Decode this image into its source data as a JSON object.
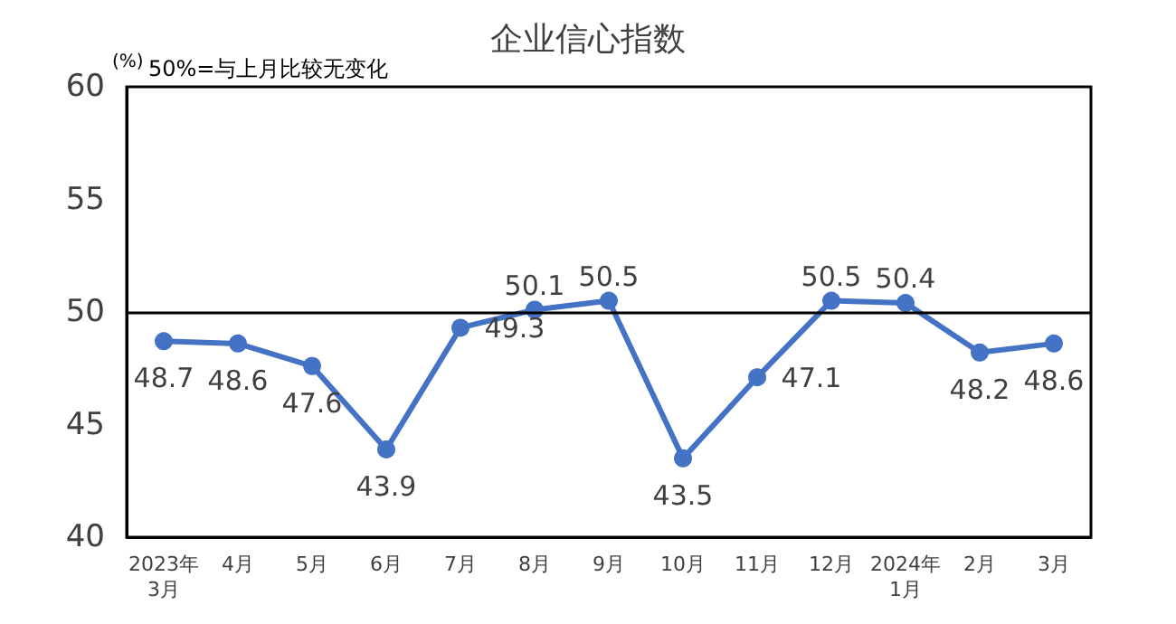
{
  "chart_data": {
    "type": "line",
    "title": "企业信心指数",
    "ylabel": "(%)",
    "annotations": [
      "50%=与上月比较无变化"
    ],
    "categories": [
      "2023年\n3月",
      "4月",
      "5月",
      "6月",
      "7月",
      "8月",
      "9月",
      "10月",
      "11月",
      "12月",
      "2024年\n1月",
      "2月",
      "3月"
    ],
    "series": [
      {
        "color": "#4472c4",
        "values": [
          48.7,
          48.6,
          47.6,
          43.9,
          49.3,
          50.1,
          50.5,
          43.5,
          47.1,
          50.5,
          50.4,
          48.2,
          48.6
        ]
      }
    ],
    "ylim": [
      40,
      60
    ],
    "yticks": [
      40,
      45,
      50,
      55,
      60
    ],
    "grid": false,
    "marker": "circle",
    "line_style": "solid",
    "data_labels": true,
    "ref_lines": [
      {
        "axis": "y",
        "value": 50,
        "color": "#000000"
      }
    ]
  }
}
